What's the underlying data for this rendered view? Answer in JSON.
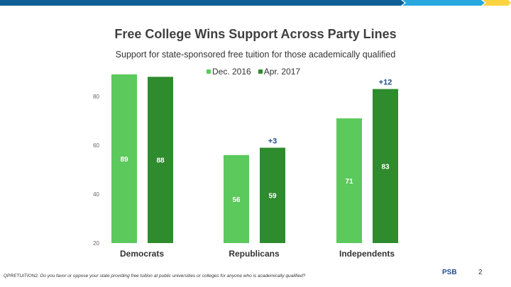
{
  "colors": {
    "dec": "#5bc95b",
    "apr": "#2e8b2e",
    "change": "#1f4e8c",
    "bar_dark_blue": "#0f5f96",
    "bar_light_blue": "#29a8e0",
    "bar_yellow": "#fcd440"
  },
  "chart_data": {
    "type": "bar",
    "title": "Free College Wins Support Across Party Lines",
    "subtitle": "Support for state-sponsored free tuition for those academically qualified",
    "categories": [
      "Democrats",
      "Republicans",
      "Independents"
    ],
    "series": [
      {
        "name": "Dec. 2016",
        "values": [
          89,
          56,
          71
        ]
      },
      {
        "name": "Apr. 2017",
        "values": [
          88,
          59,
          83
        ]
      }
    ],
    "change_labels": [
      "",
      "+3",
      "+12"
    ],
    "ylim": [
      20,
      90
    ],
    "yticks": [
      20,
      40,
      60,
      80
    ],
    "grid": false,
    "legend": "top-center"
  },
  "footer": {
    "note": "QPRETUITION2. Do you favor or oppose your state providing free tuition at public universities or colleges for anyone who is academically qualified?",
    "logo": "PSB",
    "page": "2"
  }
}
